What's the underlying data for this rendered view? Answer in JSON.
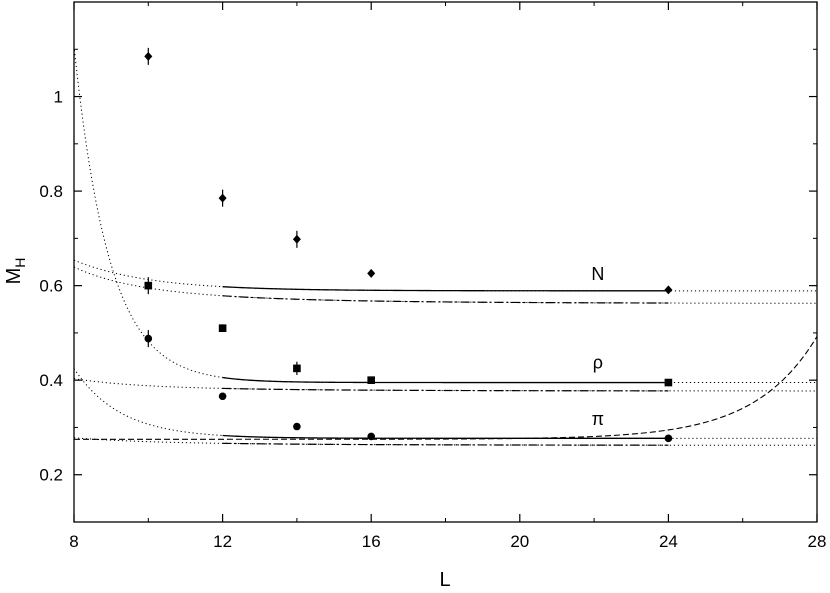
{
  "chart_data": {
    "type": "scatter",
    "title": "",
    "xlabel": "L",
    "ylabel": "M",
    "ylabel_subscript": "H",
    "xlim": [
      8,
      28
    ],
    "ylim": [
      0.1,
      1.2
    ],
    "x_ticks": [
      8,
      12,
      16,
      20,
      24,
      28
    ],
    "y_ticks": [
      0.2,
      0.4,
      0.6,
      0.8,
      1
    ],
    "x_tick_labels": [
      "8",
      "12",
      "16",
      "20",
      "24",
      "28"
    ],
    "y_tick_labels": [
      "0.2",
      "0.4",
      "0.6",
      "0.8",
      "1"
    ],
    "grid": false,
    "series": [
      {
        "name": "N",
        "marker": "diamond",
        "points": [
          {
            "x": 10,
            "y": 1.085,
            "err": 0.018
          },
          {
            "x": 12,
            "y": 0.785,
            "err": 0.018
          },
          {
            "x": 14,
            "y": 0.698,
            "err": 0.018
          },
          {
            "x": 16,
            "y": 0.626,
            "err": 0.006
          },
          {
            "x": 24,
            "y": 0.591,
            "err": 0.006
          }
        ],
        "fits": {
          "exp": {
            "A": 0.589,
            "B": 3.545,
            "k": 0.5,
            "style": "solid",
            "range": [
              12,
              24
            ]
          },
          "pow": {
            "A": 0.562,
            "B": 208.8,
            "n": 3.8,
            "style": "dashdot",
            "range": [
              12,
              24
            ]
          }
        }
      },
      {
        "name": "ρ",
        "marker": "square",
        "points": [
          {
            "x": 10,
            "y": 0.6,
            "err": 0.018
          },
          {
            "x": 12,
            "y": 0.51,
            "err": 0.008
          },
          {
            "x": 14,
            "y": 0.425,
            "err": 0.014
          },
          {
            "x": 16,
            "y": 0.4,
            "err": 0.008
          },
          {
            "x": 24,
            "y": 0.395,
            "err": 0.006
          }
        ],
        "fits": {
          "exp": {
            "A": 0.395,
            "B": 3165.6,
            "k": 1.05,
            "style": "solid",
            "range": [
              12,
              24
            ]
          },
          "pow": {
            "A": 0.377,
            "B": 71.21,
            "n": 3.8,
            "style": "dashdot",
            "range": [
              12,
              24
            ]
          }
        }
      },
      {
        "name": "π",
        "marker": "circle",
        "points": [
          {
            "x": 10,
            "y": 0.488,
            "err": 0.018
          },
          {
            "x": 12,
            "y": 0.366,
            "err": 0.006
          },
          {
            "x": 14,
            "y": 0.302,
            "err": 0.006
          },
          {
            "x": 16,
            "y": 0.281,
            "err": 0.006
          },
          {
            "x": 24,
            "y": 0.277,
            "err": 0.006
          }
        ],
        "fits": {
          "exp": {
            "A": 0.277,
            "B": 88.87,
            "k": 0.8,
            "style": "solid",
            "range": [
              12,
              24
            ]
          },
          "pow": {
            "A": 0.262,
            "B": 12.58,
            "n": 3.2,
            "style": "dashdot",
            "range": [
              12,
              24
            ]
          },
          "dashed": {
            "A": 0.275,
            "B": 1.1e-08,
            "k": -0.6,
            "style": "dashed",
            "range": [
              8,
              28
            ]
          }
        }
      }
    ],
    "annotations": [
      {
        "text": "N",
        "x": 22.1,
        "y": 0.612
      },
      {
        "text": "ρ",
        "x": 22.1,
        "y": 0.425
      },
      {
        "text": "π",
        "x": 22.1,
        "y": 0.305
      }
    ]
  }
}
